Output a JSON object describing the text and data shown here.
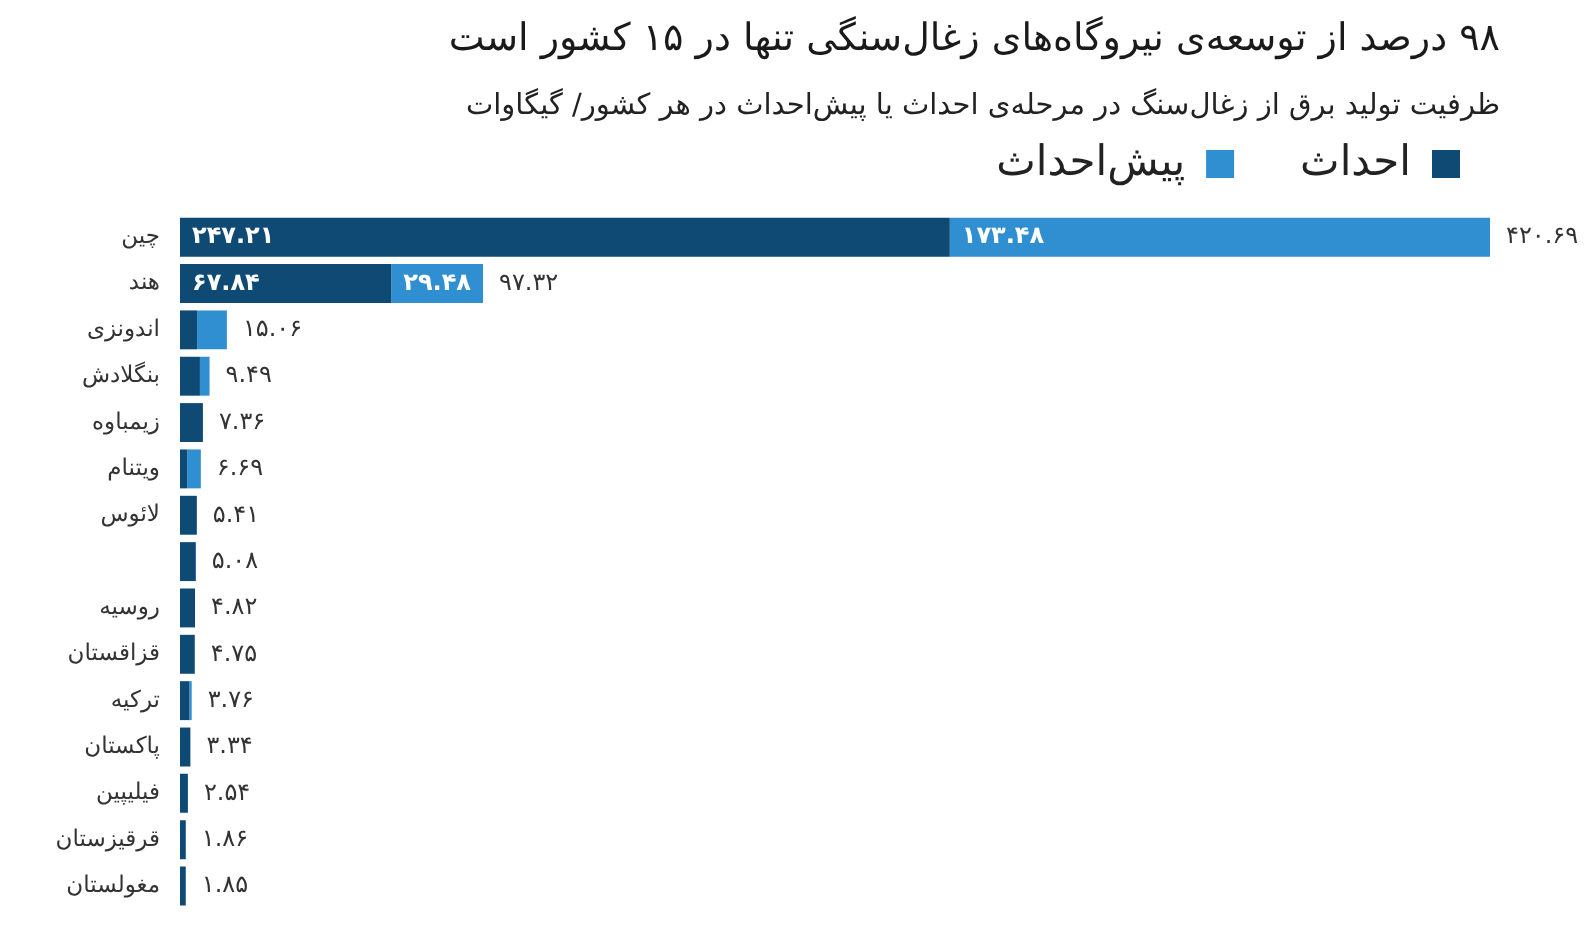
{
  "chart_data": {
    "type": "bar",
    "orientation": "horizontal",
    "stacked": true,
    "title": "۹۸ درصد از توسعه‌ی نیروگاه‌های زغال‌سنگی تنها در ۱۵ کشور است",
    "subtitle": "ظرفیت تولید برق از زغال‌سنگ در مرحله‌ی احداث یا پیش‌احداث در هر کشور/ گیگاوات",
    "categories": [
      "چین",
      "هند",
      "اندونزی",
      "بنگلادش",
      "زیمباوه",
      "ویتنام",
      "لائوس",
      null,
      "روسیه",
      "قزاقستان",
      "ترکیه",
      "پاکستان",
      "فیلیپین",
      "قرقیزستان",
      "مغولستان"
    ],
    "series": [
      {
        "name": "احداث",
        "color": "#0f4a75",
        "values": [
          247.21,
          67.84,
          5.5,
          6.4,
          7.36,
          2.3,
          5.41,
          5.08,
          4.82,
          4.75,
          3.0,
          3.34,
          2.54,
          1.86,
          1.85
        ],
        "value_labels": [
          "۲۴۷.۲۱",
          "۶۷.۸۴",
          null,
          null,
          null,
          null,
          null,
          null,
          null,
          null,
          null,
          null,
          null,
          null,
          null
        ]
      },
      {
        "name": "پیش‌احداث",
        "color": "#2f8fd0",
        "values": [
          173.48,
          29.48,
          9.56,
          3.09,
          null,
          4.39,
          null,
          null,
          null,
          null,
          0.76,
          null,
          null,
          null,
          null
        ],
        "value_labels": [
          "۱۷۳.۴۸",
          "۲۹.۴۸",
          null,
          null,
          null,
          null,
          null,
          null,
          null,
          null,
          null,
          null,
          null,
          null,
          null
        ]
      }
    ],
    "totals": [
      "۴۲۰.۶۹",
      "۹۷.۳۲",
      "۱۵.۰۶",
      "۹.۴۹",
      "۷.۳۶",
      "۶.۶۹",
      "۵.۴۱",
      "۵.۰۸",
      "۴.۸۲",
      "۴.۷۵",
      "۳.۷۶",
      "۳.۳۴",
      "۲.۵۴",
      "۱.۸۶",
      "۱.۸۵"
    ],
    "legend": "top right",
    "tick_labels": "y"
  }
}
